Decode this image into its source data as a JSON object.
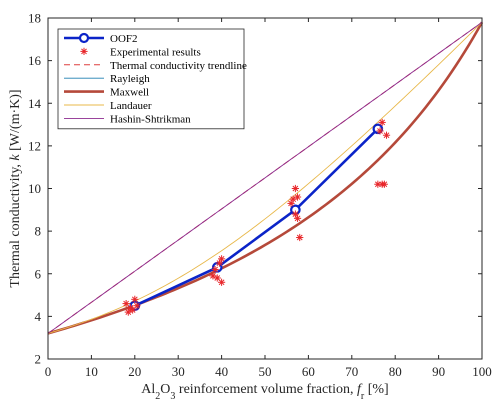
{
  "chart_data": {
    "type": "line",
    "xlabel_prefix": "Al",
    "xlabel_sub1": "2",
    "xlabel_mid": "O",
    "xlabel_sub2": "3",
    "xlabel_rest": " reinforcement volume fraction, ",
    "xlabel_var": "f",
    "xlabel_var_sub": "r",
    "xlabel_unit": " [%]",
    "ylabel_main": "Thermal conductivity, ",
    "ylabel_var": "k",
    "ylabel_unit": " [W/(m·K)]",
    "xlim": [
      0,
      100
    ],
    "ylim": [
      2,
      18
    ],
    "xticks": [
      0,
      10,
      20,
      30,
      40,
      50,
      60,
      70,
      80,
      90,
      100
    ],
    "yticks": [
      2,
      4,
      6,
      8,
      10,
      12,
      14,
      16,
      18
    ],
    "grid": false,
    "legend_position": "top-left",
    "k_matrix": 3.2,
    "k_filler": 17.8,
    "series": [
      {
        "name": "OOF2",
        "kind": "line-marker",
        "color": "#0b24c8",
        "x": [
          20,
          39,
          57,
          76
        ],
        "y": [
          4.5,
          6.3,
          9.0,
          12.8
        ]
      },
      {
        "name": "Experimental results",
        "kind": "scatter",
        "color": "#e8262a",
        "x": [
          18,
          18.5,
          19,
          19.5,
          20,
          20.5,
          38,
          38.5,
          39,
          39.5,
          40,
          40,
          56,
          56.5,
          57,
          57,
          57.5,
          57.5,
          58,
          76,
          76.5,
          77,
          77,
          77.5,
          78
        ],
        "y": [
          4.6,
          4.2,
          4.4,
          4.3,
          4.8,
          4.5,
          5.9,
          6.2,
          5.8,
          6.5,
          5.6,
          6.7,
          9.3,
          9.5,
          8.8,
          10.0,
          8.6,
          9.6,
          7.7,
          10.2,
          12.7,
          10.2,
          13.1,
          10.2,
          12.5
        ]
      },
      {
        "name": "Thermal conductivity trendline",
        "kind": "dashed",
        "color": "#dd3f3f",
        "x": [
          0,
          100
        ],
        "y": [
          3.2,
          17.8
        ]
      },
      {
        "name": "Rayleigh",
        "kind": "model",
        "model": "maxwell",
        "color": "#1f7fb0"
      },
      {
        "name": "Maxwell",
        "kind": "model",
        "model": "maxwell",
        "color": "#b5493a"
      },
      {
        "name": "Landauer",
        "kind": "model",
        "model": "emt",
        "color": "#e8b84a"
      },
      {
        "name": "Hashin-Shtrikman",
        "kind": "model",
        "model": "linear",
        "color": "#8c2a8e"
      }
    ]
  }
}
